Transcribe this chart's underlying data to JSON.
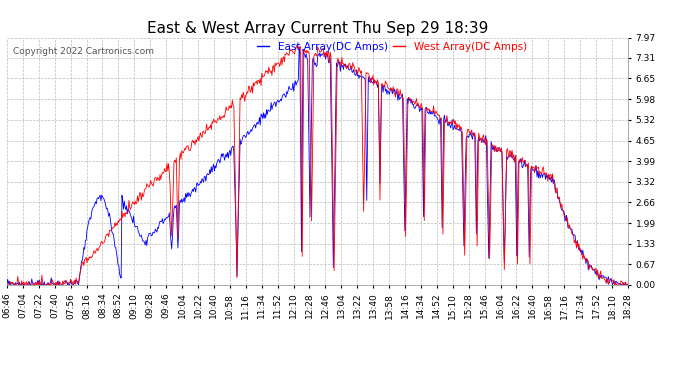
{
  "title": "East & West Array Current Thu Sep 29 18:39",
  "copyright": "Copyright 2022 Cartronics.com",
  "legend_east": "East Array(DC Amps)",
  "legend_west": "West Array(DC Amps)",
  "east_color": "#0000ff",
  "west_color": "#ff0000",
  "background_color": "#ffffff",
  "grid_color": "#bbbbbb",
  "ylim": [
    0.0,
    7.97
  ],
  "yticks": [
    0.0,
    0.67,
    1.33,
    1.99,
    2.66,
    3.32,
    3.99,
    4.65,
    5.32,
    5.98,
    6.65,
    7.31,
    7.97
  ],
  "xtick_labels": [
    "06:46",
    "07:04",
    "07:22",
    "07:40",
    "07:56",
    "08:16",
    "08:34",
    "08:52",
    "09:10",
    "09:28",
    "09:46",
    "10:04",
    "10:22",
    "10:40",
    "10:58",
    "11:16",
    "11:34",
    "11:52",
    "12:10",
    "12:28",
    "12:46",
    "13:04",
    "13:22",
    "13:40",
    "13:58",
    "14:16",
    "14:34",
    "14:52",
    "15:10",
    "15:28",
    "15:46",
    "16:04",
    "16:22",
    "16:40",
    "16:58",
    "17:16",
    "17:34",
    "17:52",
    "18:10",
    "18:28"
  ],
  "title_fontsize": 11,
  "label_fontsize": 6.5,
  "copyright_fontsize": 6.5,
  "legend_fontsize": 7.5
}
